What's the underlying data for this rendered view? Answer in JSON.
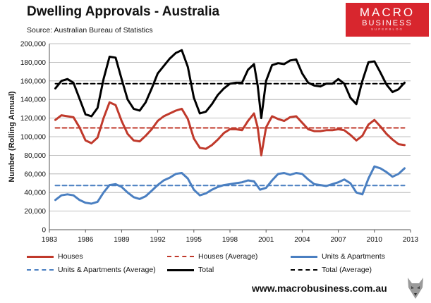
{
  "header": {
    "title": "Dwelling Approvals - Australia",
    "source": "Source: Australian Bureau of Statistics"
  },
  "logo": {
    "line1": "MACRO",
    "line2": "BUSINESS",
    "line3": "SUPERBLOG"
  },
  "footer": {
    "url": "www.macrobusiness.com.au"
  },
  "colors": {
    "houses": "#c0392b",
    "units": "#4a7fc1",
    "total": "#000000",
    "grid": "#aaaaaa"
  },
  "chart_data": {
    "type": "line",
    "title": "Dwelling Approvals - Australia",
    "xlabel": "",
    "ylabel": "Number (Rolling Annual)",
    "xlim": [
      1983,
      2013
    ],
    "ylim": [
      0,
      200000
    ],
    "xticks": [
      "1983",
      "1986",
      "1989",
      "1992",
      "1995",
      "1998",
      "2001",
      "2004",
      "2007",
      "2010",
      "2013"
    ],
    "yticks": [
      "0",
      "20,000",
      "40,000",
      "60,000",
      "80,000",
      "100,000",
      "120,000",
      "140,000",
      "160,000",
      "180,000",
      "200,000"
    ],
    "grid": true,
    "legend_position": "bottom",
    "series": [
      {
        "name": "Houses",
        "key": "houses",
        "style": "solid",
        "x": [
          1983.5,
          1984,
          1984.5,
          1985,
          1985.5,
          1986,
          1986.5,
          1987,
          1987.5,
          1988,
          1988.5,
          1989,
          1989.5,
          1990,
          1990.5,
          1991,
          1991.5,
          1992,
          1992.5,
          1993,
          1993.5,
          1994,
          1994.5,
          1995,
          1995.5,
          1996,
          1996.5,
          1997,
          1997.5,
          1998,
          1998.5,
          1999,
          1999.5,
          2000,
          2000.3,
          2000.6,
          2001,
          2001.5,
          2002,
          2002.5,
          2003,
          2003.5,
          2004,
          2004.5,
          2005,
          2005.5,
          2006,
          2006.5,
          2007,
          2007.5,
          2008,
          2008.5,
          2009,
          2009.5,
          2010,
          2010.5,
          2011,
          2011.5,
          2012,
          2012.5
        ],
        "y": [
          118000,
          123000,
          122000,
          121000,
          110000,
          96000,
          93000,
          99000,
          120000,
          137000,
          134000,
          117000,
          103000,
          96000,
          95000,
          101000,
          108000,
          117000,
          122000,
          125000,
          128000,
          130000,
          119000,
          98000,
          88000,
          87000,
          91000,
          97000,
          104000,
          108000,
          108000,
          107000,
          117000,
          125000,
          110000,
          80000,
          110000,
          122000,
          119000,
          117000,
          121000,
          122000,
          115000,
          108000,
          106000,
          106000,
          107000,
          107000,
          108000,
          107000,
          102000,
          96000,
          101000,
          113000,
          118000,
          111000,
          103000,
          97000,
          92000,
          91000
        ]
      },
      {
        "name": "Houses (Average)",
        "key": "houses",
        "style": "dashed",
        "x": [
          1983.5,
          2012.5
        ],
        "y": [
          109500,
          109500
        ]
      },
      {
        "name": "Units & Apartments",
        "key": "units",
        "style": "solid",
        "x": [
          1983.5,
          1984,
          1984.5,
          1985,
          1985.5,
          1986,
          1986.5,
          1987,
          1987.5,
          1988,
          1988.5,
          1989,
          1989.5,
          1990,
          1990.5,
          1991,
          1991.5,
          1992,
          1992.5,
          1993,
          1993.5,
          1994,
          1994.5,
          1995,
          1995.5,
          1996,
          1996.5,
          1997,
          1997.5,
          1998,
          1998.5,
          1999,
          1999.5,
          2000,
          2000.5,
          2001,
          2001.5,
          2002,
          2002.5,
          2003,
          2003.5,
          2004,
          2004.5,
          2005,
          2005.5,
          2006,
          2006.5,
          2007,
          2007.5,
          2008,
          2008.5,
          2009,
          2009.5,
          2010,
          2010.5,
          2011,
          2011.5,
          2012,
          2012.5
        ],
        "y": [
          32000,
          37000,
          38000,
          37000,
          32000,
          29000,
          28000,
          30000,
          40000,
          48000,
          49000,
          46000,
          40000,
          35000,
          33000,
          36000,
          42000,
          48000,
          53000,
          56000,
          60000,
          61000,
          55000,
          43000,
          37000,
          39000,
          43000,
          46000,
          48000,
          49000,
          50000,
          51000,
          53000,
          52000,
          43000,
          45000,
          53000,
          60000,
          61000,
          59000,
          61000,
          60000,
          54000,
          49000,
          48000,
          47000,
          49000,
          51000,
          54000,
          50000,
          40000,
          38000,
          55000,
          68000,
          66000,
          62000,
          57000,
          60000,
          66000
        ]
      },
      {
        "name": "Units & Apartments (Average)",
        "key": "units",
        "style": "dashed",
        "x": [
          1983.5,
          2012.5
        ],
        "y": [
          47500,
          47500
        ]
      },
      {
        "name": "Total",
        "key": "total",
        "style": "solid",
        "x": [
          1983.5,
          1984,
          1984.5,
          1985,
          1985.5,
          1986,
          1986.5,
          1987,
          1987.5,
          1988,
          1988.5,
          1989,
          1989.5,
          1990,
          1990.5,
          1991,
          1991.5,
          1992,
          1992.5,
          1993,
          1993.5,
          1994,
          1994.5,
          1995,
          1995.5,
          1996,
          1996.5,
          1997,
          1997.5,
          1998,
          1998.5,
          1999,
          1999.5,
          2000,
          2000.3,
          2000.6,
          2001,
          2001.5,
          2002,
          2002.5,
          2003,
          2003.5,
          2004,
          2004.5,
          2005,
          2005.5,
          2006,
          2006.5,
          2007,
          2007.5,
          2008,
          2008.5,
          2009,
          2009.5,
          2010,
          2010.5,
          2011,
          2011.5,
          2012,
          2012.5
        ],
        "y": [
          152000,
          160000,
          162000,
          158000,
          141000,
          124000,
          122000,
          131000,
          162000,
          186000,
          185000,
          162000,
          140000,
          130000,
          128000,
          137000,
          152000,
          168000,
          176000,
          184000,
          190000,
          193000,
          175000,
          142000,
          125000,
          127000,
          135000,
          145000,
          152000,
          157000,
          158000,
          158000,
          172000,
          178000,
          155000,
          120000,
          160000,
          177000,
          179000,
          178000,
          182000,
          183000,
          168000,
          158000,
          155000,
          154000,
          157000,
          157000,
          162000,
          157000,
          142000,
          135000,
          160000,
          180000,
          181000,
          169000,
          156000,
          148000,
          151000,
          158000
        ]
      },
      {
        "name": "Total (Average)",
        "key": "total",
        "style": "dashed",
        "x": [
          1983.5,
          2012.5
        ],
        "y": [
          157000,
          157000
        ]
      }
    ]
  }
}
